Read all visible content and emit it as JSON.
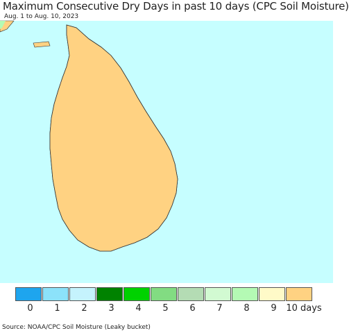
{
  "title": "Maximum Consecutive Dry Days in past 10 days (CPC Soil Moisture)",
  "subtitle": "Aug. 1 to Aug. 10, 2023",
  "source": "Source: NOAA/CPC Soil Moisture (Leaky bucket)",
  "colors": {
    "ocean": "#c6feff",
    "no_data": "#e6e6e6",
    "border": "#333333"
  },
  "legend": {
    "bins": [
      {
        "color": "#1ea5ee"
      },
      {
        "color": "#8ce2fa"
      },
      {
        "color": "#c5f3fd"
      },
      {
        "color": "#008200"
      },
      {
        "color": "#00d200"
      },
      {
        "color": "#82dc82"
      },
      {
        "color": "#b4dcb4"
      },
      {
        "color": "#d2fad2"
      },
      {
        "color": "#b4fab4"
      },
      {
        "color": "#fffac8"
      },
      {
        "color": "#ffd282"
      }
    ],
    "labels": [
      "0",
      "1",
      "2",
      "3",
      "4",
      "5",
      "6",
      "7",
      "8",
      "9",
      "10 days"
    ]
  }
}
